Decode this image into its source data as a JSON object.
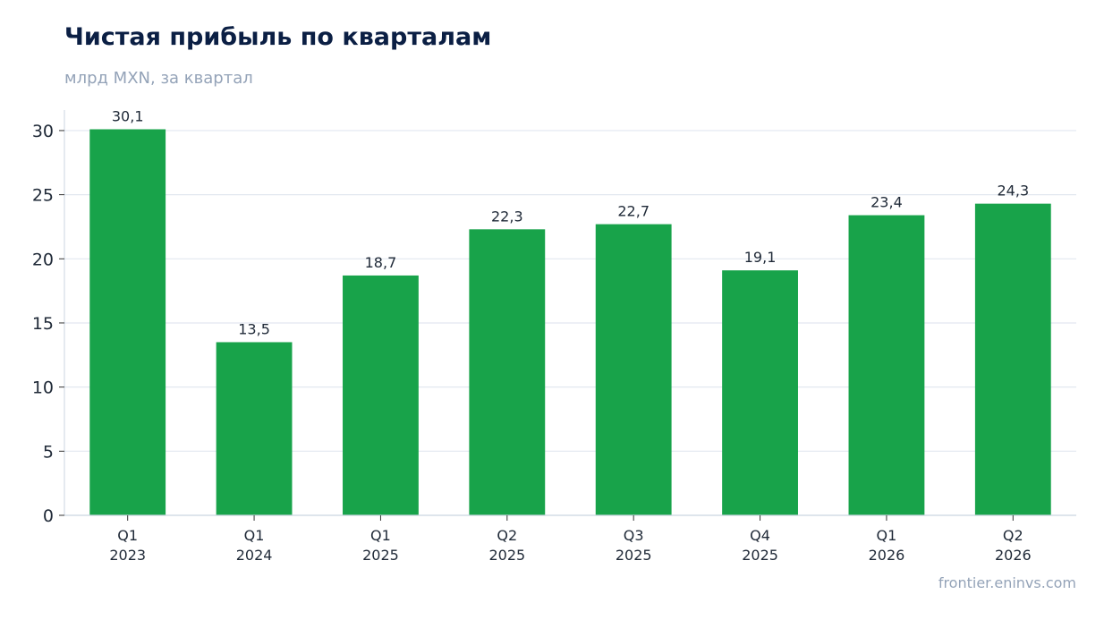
{
  "header": {
    "title": "Чистая прибыль по кварталам",
    "subtitle": "млрд MXN, за квартал"
  },
  "footer": {
    "source": "frontier.eninvs.com"
  },
  "chart_data": {
    "type": "bar",
    "title": "Чистая прибыль по кварталам",
    "subtitle": "млрд MXN, за квартал",
    "xlabel": "",
    "ylabel": "",
    "categories": [
      [
        "Q1",
        "2023"
      ],
      [
        "Q1",
        "2024"
      ],
      [
        "Q1",
        "2025"
      ],
      [
        "Q2",
        "2025"
      ],
      [
        "Q3",
        "2025"
      ],
      [
        "Q4",
        "2025"
      ],
      [
        "Q1",
        "2026"
      ],
      [
        "Q2",
        "2026"
      ]
    ],
    "values": [
      30.1,
      13.5,
      18.7,
      22.3,
      22.7,
      19.1,
      23.4,
      24.3
    ],
    "data_labels": [
      "30,1",
      "13,5",
      "18,7",
      "22,3",
      "22,7",
      "19,1",
      "23,4",
      "24,3"
    ],
    "ylim": [
      0,
      31.6
    ],
    "yticks": [
      0,
      5,
      10,
      15,
      20,
      25,
      30
    ],
    "grid": "horizontal",
    "legend": "none",
    "colors": {
      "bar": "#18a34a",
      "grid": "#e2e8f0",
      "axis": "#cbd5e1"
    }
  }
}
